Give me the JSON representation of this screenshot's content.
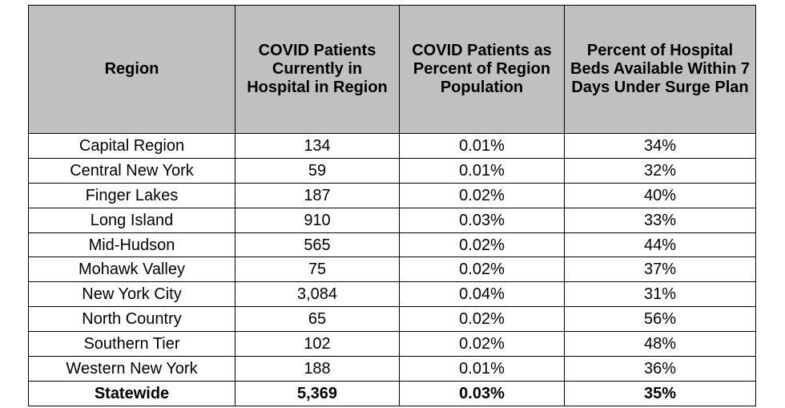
{
  "chart_data": {
    "type": "table",
    "columns": [
      "Region",
      "COVID Patients Currently in Hospital in Region",
      "COVID Patients as Percent of Region Population",
      "Percent of Hospital Beds Available Within 7 Days Under Surge Plan"
    ],
    "rows": [
      [
        "Capital Region",
        "134",
        "0.01%",
        "34%"
      ],
      [
        "Central New York",
        "59",
        "0.01%",
        "32%"
      ],
      [
        "Finger Lakes",
        "187",
        "0.02%",
        "40%"
      ],
      [
        "Long Island",
        "910",
        "0.03%",
        "33%"
      ],
      [
        "Mid-Hudson",
        "565",
        "0.02%",
        "44%"
      ],
      [
        "Mohawk Valley",
        "75",
        "0.02%",
        "37%"
      ],
      [
        "New York City",
        "3,084",
        "0.04%",
        "31%"
      ],
      [
        "North Country",
        "65",
        "0.02%",
        "56%"
      ],
      [
        "Southern Tier",
        "102",
        "0.02%",
        "48%"
      ],
      [
        "Western New York",
        "188",
        "0.01%",
        "36%"
      ]
    ],
    "total": [
      "Statewide",
      "5,369",
      "0.03%",
      "35%"
    ]
  },
  "colors": {
    "header_background": "#c0c0c0",
    "border": "#000000"
  }
}
